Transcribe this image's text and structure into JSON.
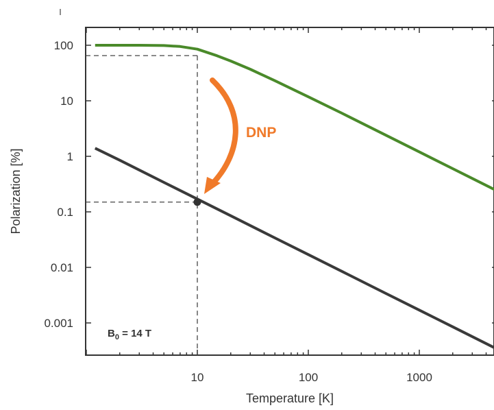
{
  "chart_data": {
    "type": "line",
    "xlabel": "Temperature [K]",
    "ylabel": "Polarization [%]",
    "xscale": "log",
    "yscale": "log",
    "xlim": [
      1.2,
      5000
    ],
    "ylim": [
      0.0003,
      150
    ],
    "x_tick_labels": [
      {
        "value": 10,
        "label": "10"
      },
      {
        "value": 100,
        "label": "100"
      },
      {
        "value": 1000,
        "label": "1000"
      }
    ],
    "y_tick_labels": [
      {
        "value": 100,
        "label": "100"
      },
      {
        "value": 10,
        "label": "10"
      },
      {
        "value": 1,
        "label": "1"
      },
      {
        "value": 0.1,
        "label": "0.1"
      },
      {
        "value": 0.01,
        "label": "0.01"
      },
      {
        "value": 0.001,
        "label": "0.001"
      }
    ],
    "grid": false,
    "series": [
      {
        "color": "#4a8a2a",
        "x": [
          1.2,
          2,
          3,
          5,
          7,
          10,
          15,
          20,
          30,
          50,
          100,
          200,
          500,
          1000,
          2000,
          5000
        ],
        "y": [
          100,
          100,
          100,
          99,
          95,
          85,
          65,
          52,
          37,
          23,
          11.8,
          6,
          2.4,
          1.2,
          0.6,
          0.24
        ]
      },
      {
        "color": "#3a3a3a",
        "x": [
          1.2,
          2,
          5,
          10,
          20,
          50,
          100,
          200,
          500,
          1000,
          2000,
          5000
        ],
        "y": [
          1.4,
          0.85,
          0.34,
          0.17,
          0.085,
          0.034,
          0.017,
          0.0085,
          0.0034,
          0.0017,
          0.00085,
          0.00034
        ]
      }
    ],
    "reference_point": {
      "x": 10,
      "y": 0.15
    },
    "reference_lines": {
      "x": 10,
      "y_low": 0.15,
      "y_high": 65
    },
    "annotations": {
      "dnp_text": "DNP",
      "dnp_color": "#f07a2a",
      "field_text": "B",
      "field_subscript": "0",
      "field_value": " = 14 T"
    }
  }
}
